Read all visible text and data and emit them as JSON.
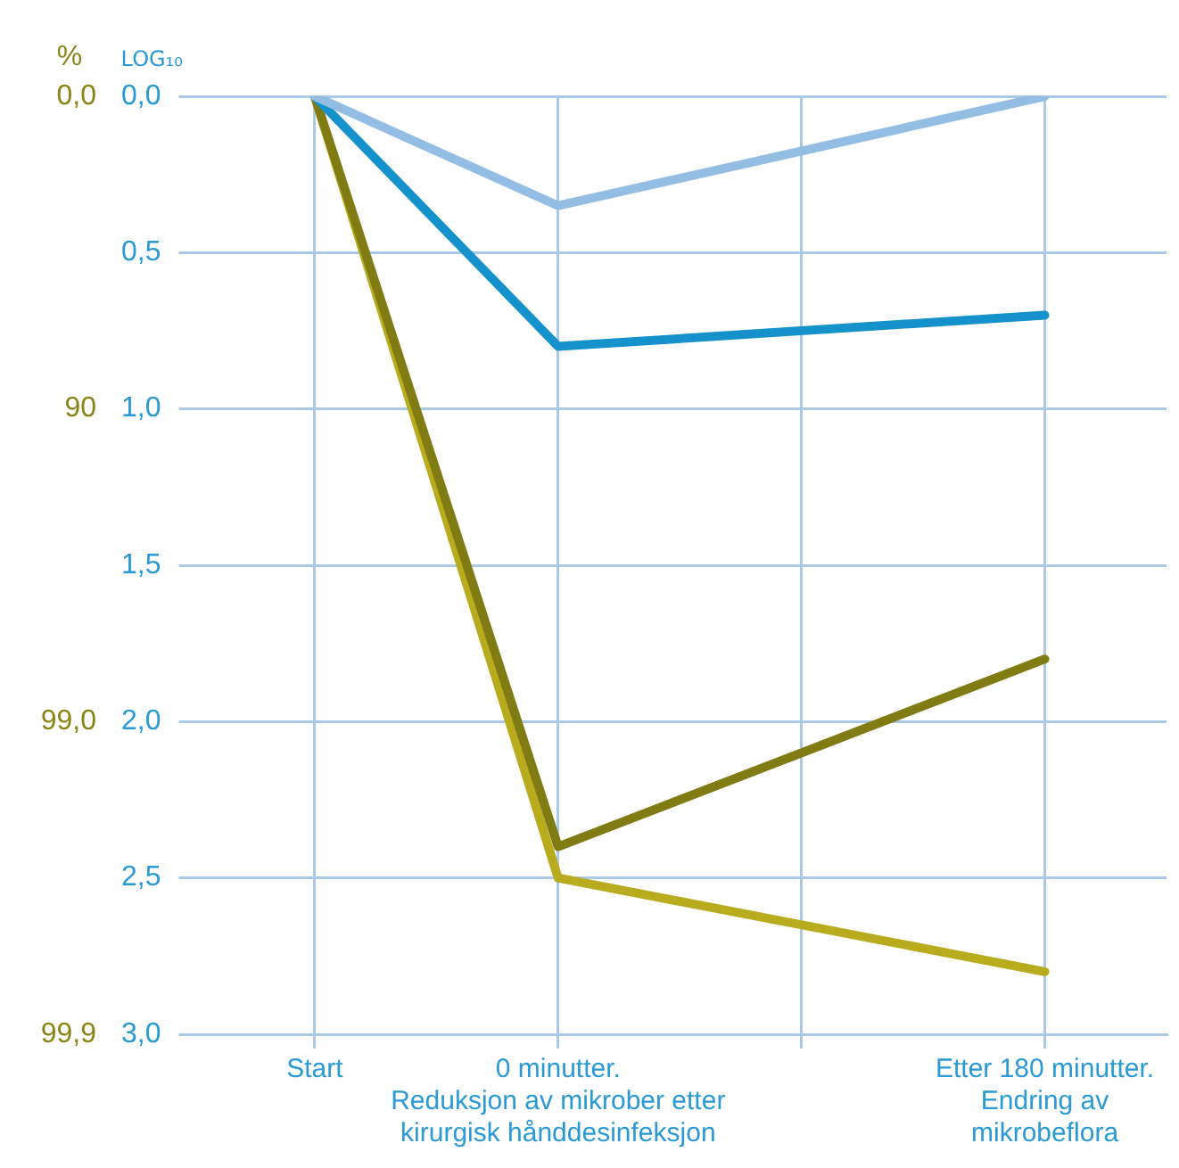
{
  "chart_data": {
    "type": "line",
    "ylabel": "LOG₁₀",
    "annotations": [
      "%",
      "0,0",
      "90",
      "99,0",
      "99,9"
    ],
    "categories": [
      "Start",
      "0 minutter.\nReduksjon av mikrober etter\nkirurgisk hånddesinfeksjon",
      null,
      "Etter 180 minutter.\nEndring av\nmikrobeflora"
    ],
    "series": [
      {
        "color": "#93bde3",
        "values": [
          0,
          0.35,
          null,
          0
        ]
      },
      {
        "color": "#1592cb",
        "values": [
          0,
          0.8,
          null,
          0.7
        ]
      },
      {
        "color": "#807b12",
        "values": [
          0,
          2.4,
          null,
          1.8
        ]
      },
      {
        "color": "#b8ac1e",
        "values": [
          0,
          2.5,
          null,
          2.8
        ]
      }
    ],
    "ylim": [
      3,
      0
    ],
    "yticks": [
      {
        "value": 0,
        "label": "0,0"
      },
      {
        "value": 0.5,
        "label": "0,5"
      },
      {
        "value": 1,
        "label": "1,0"
      },
      {
        "value": 1.5,
        "label": "1,5"
      },
      {
        "value": 2,
        "label": "2,0"
      },
      {
        "value": 2.5,
        "label": "2,5"
      },
      {
        "value": 3,
        "label": "3,0"
      }
    ],
    "grid": true,
    "legend": false,
    "marker": "none",
    "line_style": "solid"
  }
}
